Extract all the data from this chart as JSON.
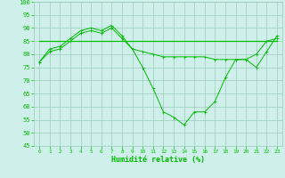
{
  "xlabel": "Humidité relative (%)",
  "background_color": "#cff0ea",
  "line_color": "#00bb00",
  "grid_color": "#99ccbb",
  "xlim": [
    -0.5,
    23.5
  ],
  "ylim": [
    45,
    100
  ],
  "yticks": [
    45,
    50,
    55,
    60,
    65,
    70,
    75,
    80,
    85,
    90,
    95,
    100
  ],
  "xticks": [
    0,
    1,
    2,
    3,
    4,
    5,
    6,
    7,
    8,
    9,
    10,
    11,
    12,
    13,
    14,
    15,
    16,
    17,
    18,
    19,
    20,
    21,
    22,
    23
  ],
  "series1_x": [
    0,
    1,
    2,
    3,
    4,
    5,
    6,
    7,
    8,
    9,
    10,
    11,
    12,
    13,
    14,
    15,
    16,
    17,
    18,
    19,
    20,
    21,
    22,
    23
  ],
  "series1_y": [
    77,
    82,
    83,
    86,
    89,
    90,
    89,
    91,
    87,
    82,
    75,
    67,
    58,
    56,
    53,
    58,
    58,
    62,
    71,
    78,
    78,
    75,
    81,
    87
  ],
  "series2_x": [
    0,
    1,
    2,
    3,
    4,
    5,
    6,
    7,
    8,
    9,
    10,
    11,
    12,
    13,
    14,
    15,
    16,
    17,
    18,
    19,
    20,
    21,
    22,
    23
  ],
  "series2_y": [
    77,
    81,
    82,
    85,
    88,
    89,
    88,
    90,
    86,
    82,
    81,
    80,
    79,
    79,
    79,
    79,
    79,
    78,
    78,
    78,
    78,
    80,
    85,
    86
  ],
  "series3_x": [
    0,
    23
  ],
  "series3_y": [
    85,
    85
  ]
}
